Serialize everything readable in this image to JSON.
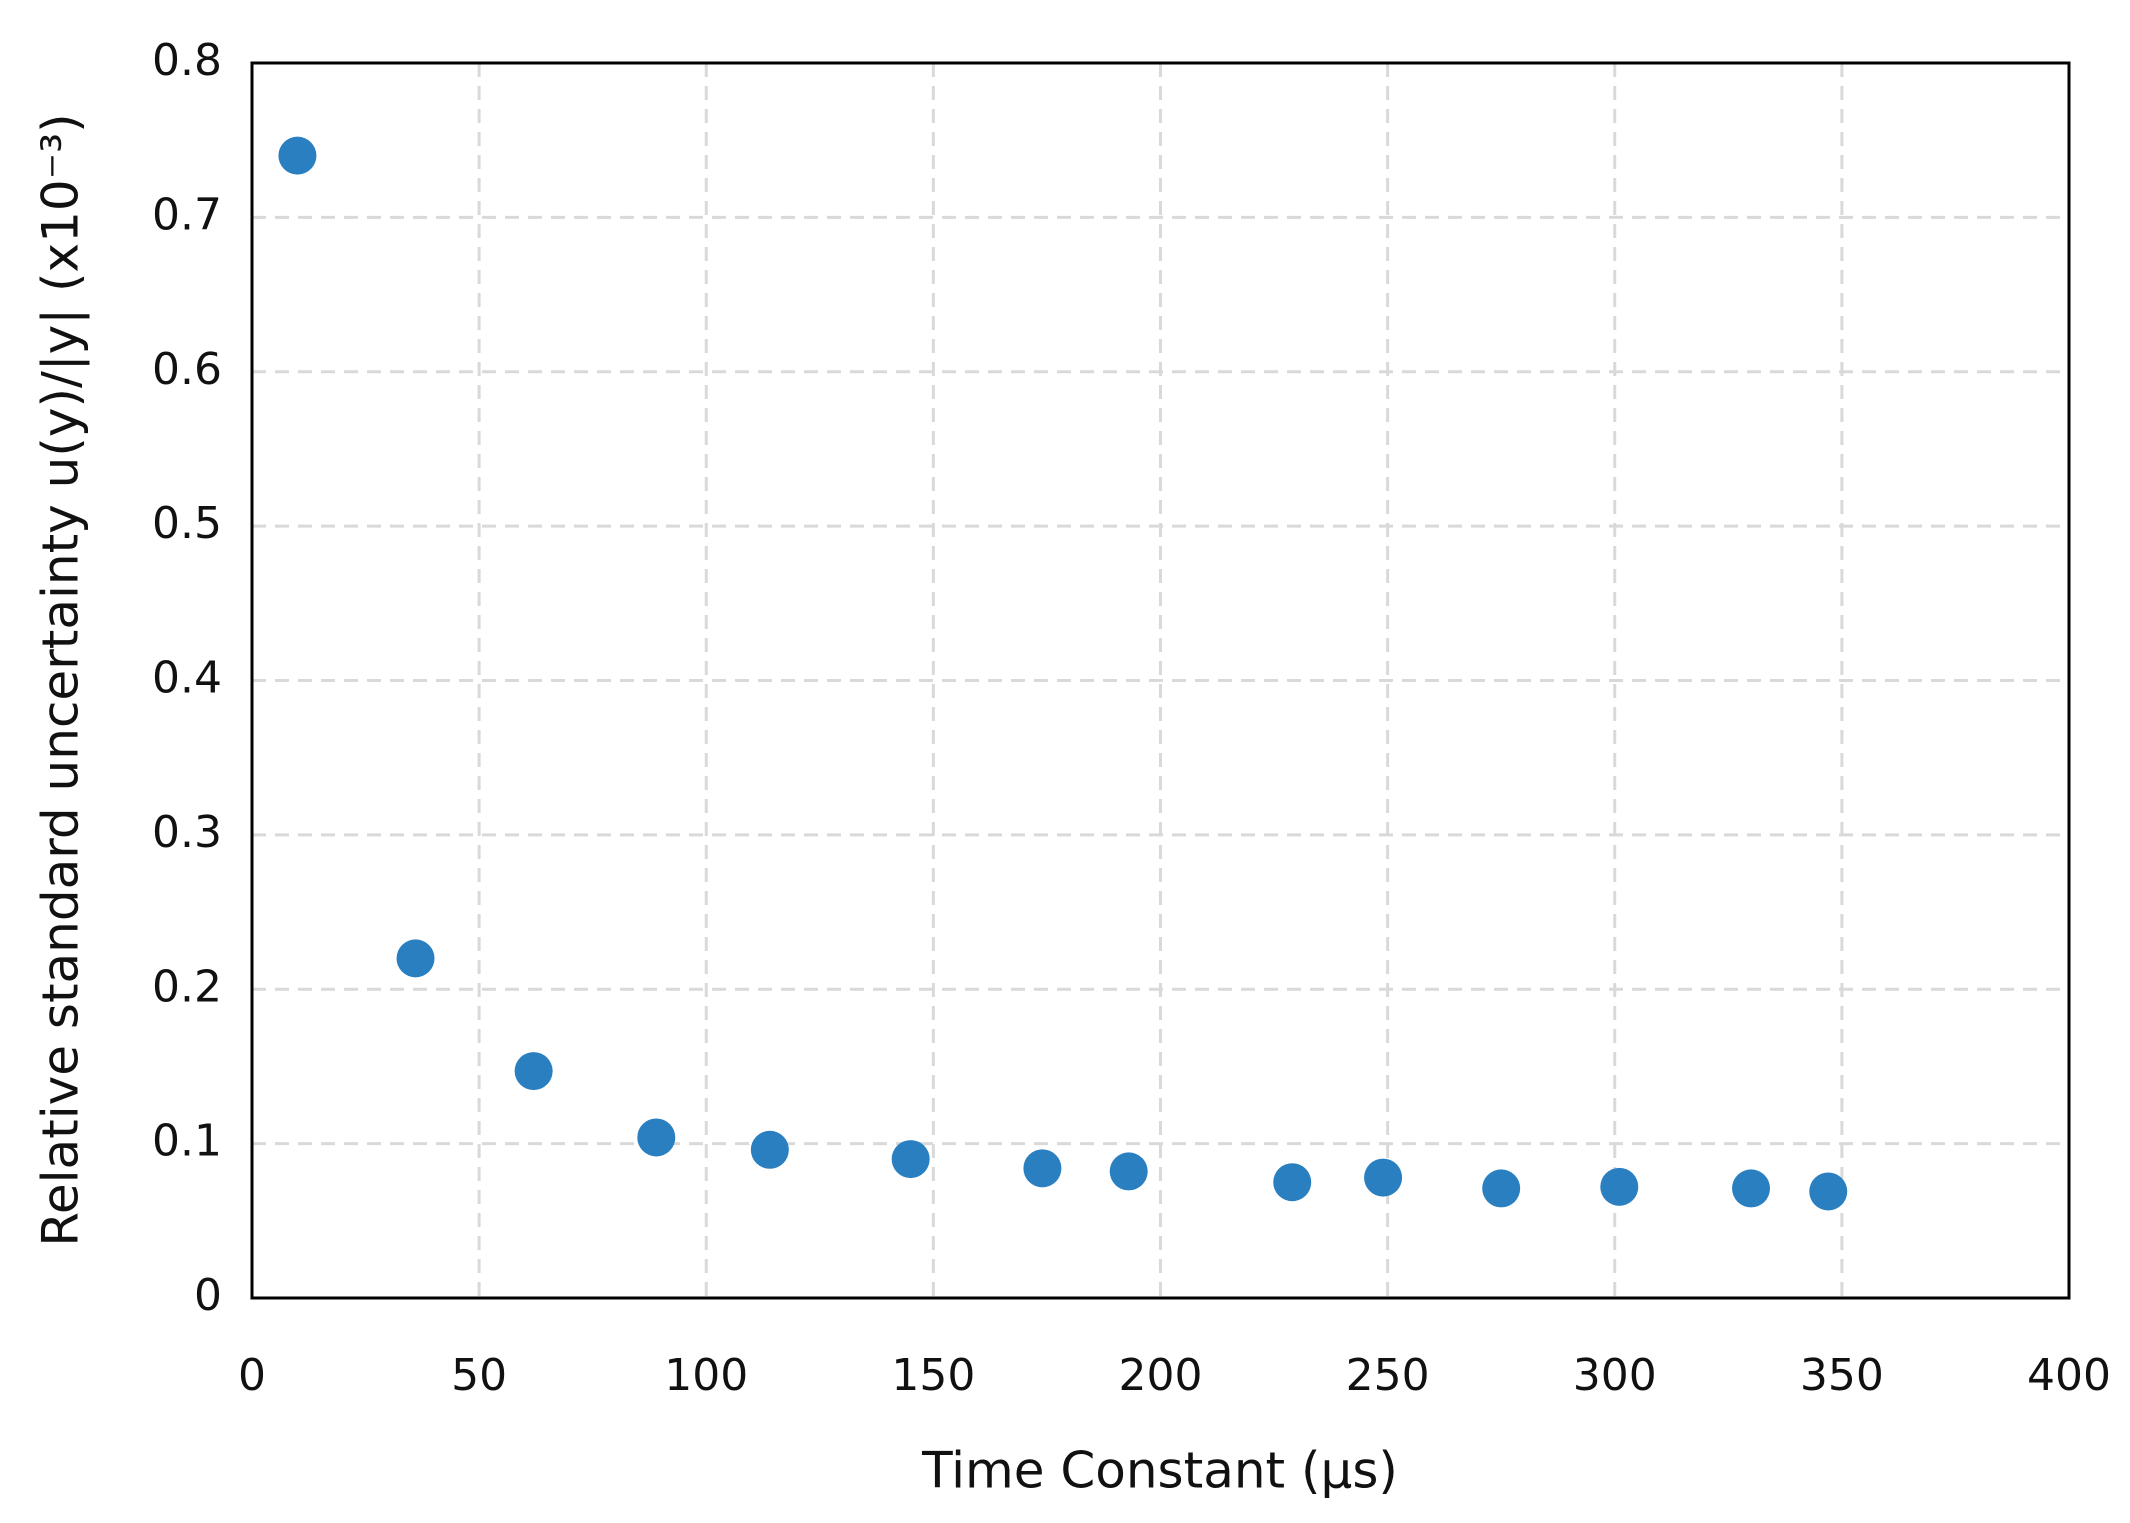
{
  "chart_data": {
    "type": "scatter",
    "x_label": "Time Constant (µs)",
    "y_label": "Relative standard uncertainty u(y)/|y|  (x10⁻³)",
    "series": [
      {
        "color": "#2a7fc1",
        "x": [
          10,
          36,
          62,
          89,
          114,
          145,
          174,
          193,
          229,
          249,
          275,
          301,
          330,
          347
        ],
        "values": [
          0.74,
          0.22,
          0.147,
          0.104,
          0.096,
          0.09,
          0.084,
          0.082,
          0.075,
          0.078,
          0.071,
          0.072,
          0.071,
          0.069
        ]
      }
    ],
    "xlim": [
      0,
      400
    ],
    "xticks": [
      0,
      50,
      100,
      150,
      200,
      250,
      300,
      350,
      400
    ],
    "ylim": [
      0,
      0.8
    ],
    "yticks": [
      0,
      0.1,
      0.2,
      0.3,
      0.4,
      0.5,
      0.6,
      0.7,
      0.8
    ],
    "grid": true
  }
}
